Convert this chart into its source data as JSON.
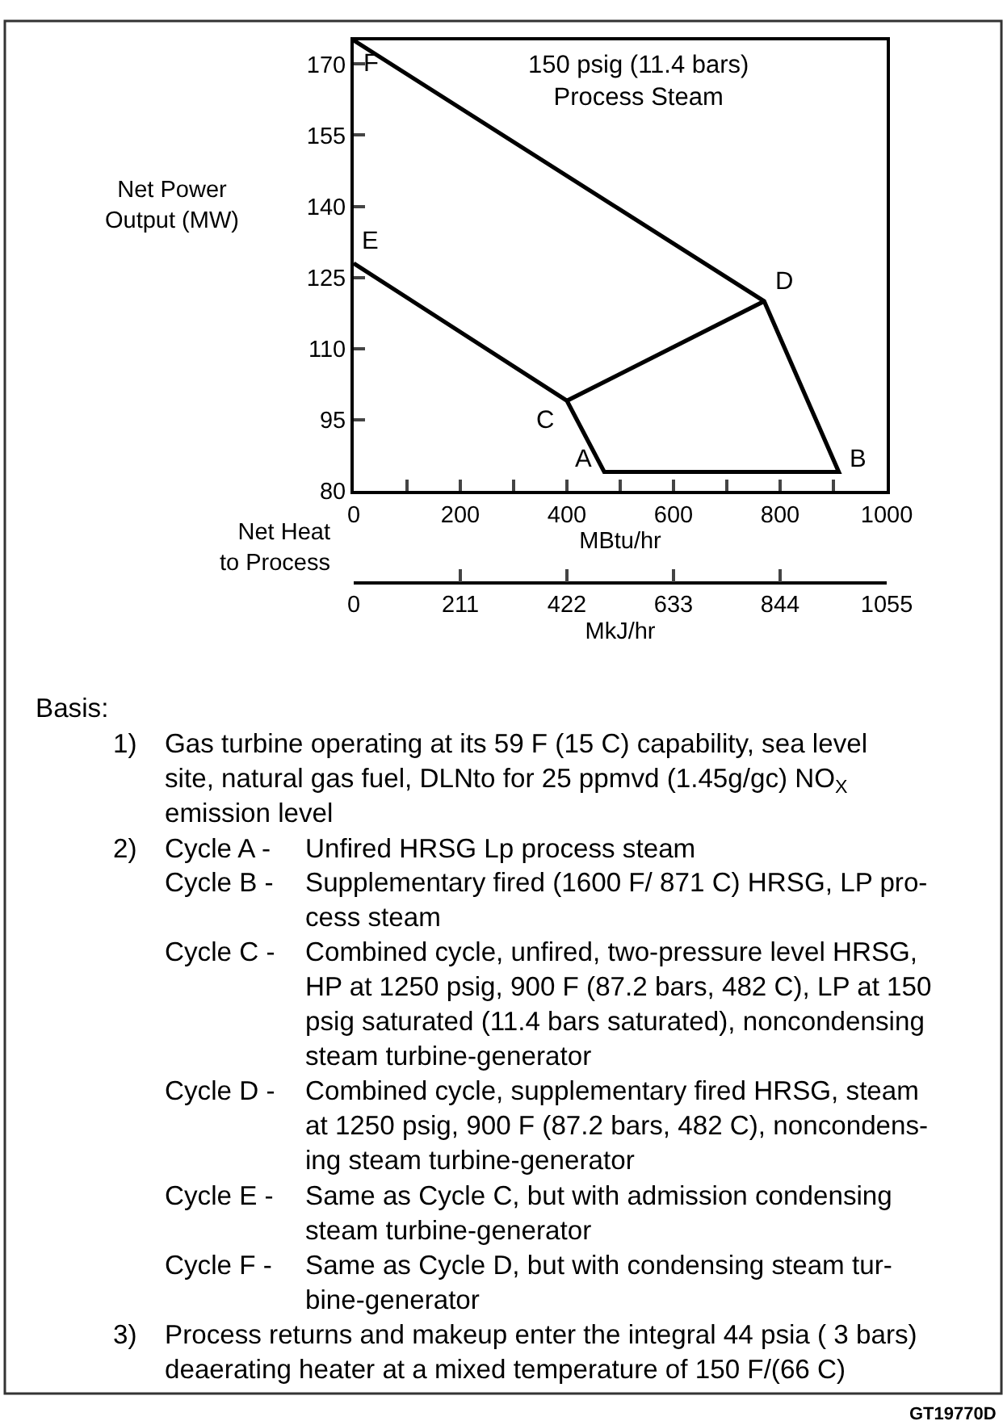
{
  "chart_data": {
    "type": "line",
    "title": "150 psig (11.4 bars)\nProcess Steam",
    "xlabel": "MBtu/hr",
    "x2label": "MkJ/hr",
    "series": [
      {
        "color": "#000000",
        "x": [
          0,
          400,
          470,
          910,
          770,
          0
        ],
        "values": [
          128,
          99,
          84,
          84,
          120,
          175
        ]
      },
      {
        "color": "#000000",
        "x": [
          400,
          770
        ],
        "values": [
          99,
          120
        ]
      }
    ],
    "xlim": [
      0,
      1000
    ],
    "xticks": [
      0,
      {
        "value": 100,
        "label": null
      },
      200,
      {
        "value": 300,
        "label": null
      },
      400,
      {
        "value": 500,
        "label": null
      },
      600,
      {
        "value": 700,
        "label": null
      },
      800,
      {
        "value": 900,
        "label": null
      },
      1000
    ],
    "x2lim": [
      0,
      1055
    ],
    "x2ticks": [
      0,
      211,
      422,
      633,
      844,
      1055
    ],
    "ylim": [
      80,
      175
    ],
    "yticks": [
      80,
      95,
      110,
      125,
      140,
      155,
      170
    ],
    "marker": "none",
    "line_style": "solid",
    "annotations": [
      {
        "text": "A",
        "x": 470,
        "y": 84
      },
      {
        "text": "B",
        "x": 910,
        "y": 84
      },
      {
        "text": "C",
        "x": 400,
        "y": 99
      },
      {
        "text": "D",
        "x": 770,
        "y": 120
      },
      {
        "text": "E",
        "x": 0,
        "y": 128
      },
      {
        "text": "F",
        "x": 0,
        "y": 175
      },
      "Net Power\nOutput (MW)",
      "Net Heat\nto Process",
      "Basis:",
      "1)",
      "Gas turbine operating at its 59 F (15 C) capability, sea level\nsite, natural gas fuel, DLNto for 25 ppmvd (1.45g/gc) NO$_{X}$\nemission level",
      "2)",
      "Cycle A -",
      "Unfired HRSG Lp process steam",
      "Cycle B -",
      "Supplementary fired (1600 F/ 871 C) HRSG, LP pro-\ncess steam",
      "Cycle C -",
      "Combined cycle, unfired, two-pressure level HRSG,\nHP at 1250 psig, 900 F (87.2 bars, 482 C), LP at 150\npsig saturated (11.4 bars saturated), noncondensing\nsteam turbine-generator",
      "Cycle D -",
      "Combined cycle, supplementary fired HRSG, steam\nat 1250 psig, 900 F (87.2 bars, 482 C), noncondens-\ning steam turbine-generator",
      "Cycle E -",
      "Same as Cycle C, but with admission condensing\nsteam turbine-generator",
      "Cycle F -",
      "Same as Cycle D, but with condensing steam tur-\nbine-generator",
      "3)",
      "Process returns and makeup enter the integral 44 psia ( 3 bars)\ndeaerating heater at a mixed temperature of 150 F/(66 C)",
      "GT19770D"
    ]
  }
}
